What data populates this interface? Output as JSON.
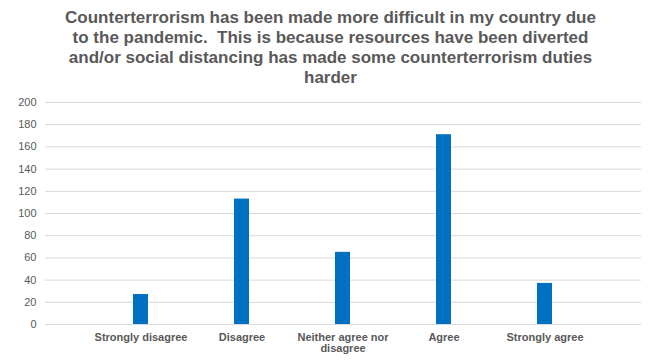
{
  "chart_data": {
    "type": "bar",
    "title": "Counterterrorism has been made more difficult in my country due to the pandemic.  This is because resources have been diverted and/or social distancing has made some counterterrorism duties harder",
    "categories": [
      "Strongly disagree",
      "Disagree",
      "Neither agree nor disagree",
      "Agree",
      "Strongly agree"
    ],
    "values": [
      27,
      113,
      65,
      171,
      37
    ],
    "color": "#0070c0",
    "ylim": [
      0,
      200
    ],
    "yticks": [
      0,
      20,
      40,
      60,
      80,
      100,
      120,
      140,
      160,
      180,
      200
    ],
    "grid": true
  }
}
